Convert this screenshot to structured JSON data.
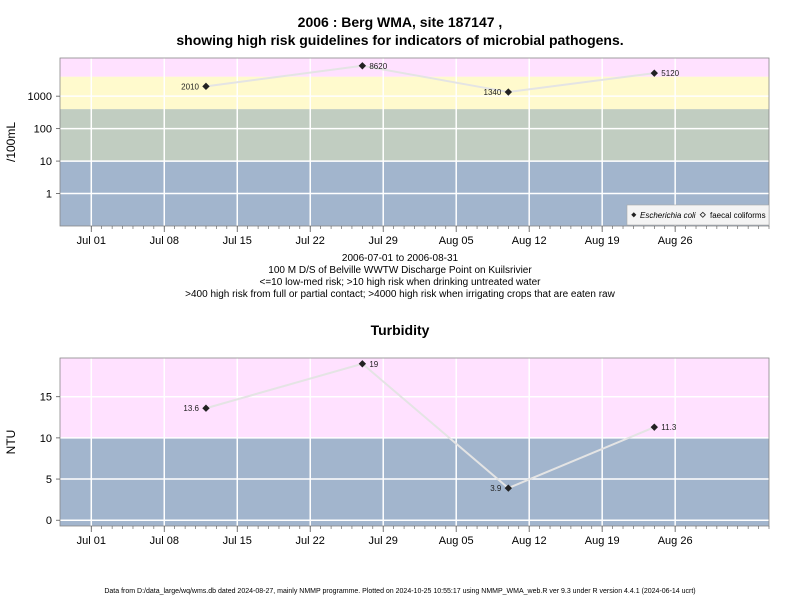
{
  "chart_data": [
    {
      "type": "line",
      "title_line1": "2006 : Berg WMA, site 187147 ,",
      "title_line2": "showing high risk guidelines for indicators of microbial pathogens.",
      "ylabel": "/100mL",
      "yscale": "log",
      "ytick_labels": [
        "1",
        "10",
        "100",
        "1000"
      ],
      "xtick_labels": [
        "Jul 01",
        "Jul 08",
        "Jul 15",
        "Jul 22",
        "Jul 29",
        "Aug 05",
        "Aug 12",
        "Aug 19",
        "Aug 26"
      ],
      "xtick_dates": [
        "2006-07-01",
        "2006-07-08",
        "2006-07-15",
        "2006-07-22",
        "2006-07-29",
        "2006-08-05",
        "2006-08-12",
        "2006-08-19",
        "2006-08-26"
      ],
      "bands": [
        {
          "from": 0.1,
          "to": 10,
          "color": "#a2b5cd"
        },
        {
          "from": 10,
          "to": 400,
          "color": "#c1cdc1"
        },
        {
          "from": 400,
          "to": 4000,
          "color": "#fffacd"
        },
        {
          "from": 4000,
          "to": 15000,
          "color": "#ffe1ff"
        }
      ],
      "series": [
        {
          "name": "Escherichia coli",
          "points": [
            {
              "x": "2006-07-12",
              "y": 2010,
              "label": "2010"
            },
            {
              "x": "2006-07-27",
              "y": 8620,
              "label": "8620"
            },
            {
              "x": "2006-08-10",
              "y": 1340,
              "label": "1340"
            },
            {
              "x": "2006-08-24",
              "y": 5120,
              "label": "5120"
            }
          ]
        }
      ],
      "legend": {
        "position": "bottom-right",
        "entries": [
          "Escherichia coli",
          "faecal coliforms"
        ]
      },
      "caption": [
        "2006-07-01 to 2006-08-31",
        "100 M D/S of Belville WWTW Discharge Point on Kuilsrivier",
        "<=10 low-med risk; >10 high risk when drinking untreated water",
        ">400 high risk from full or partial contact; >4000 high risk when irrigating crops that are eaten raw"
      ]
    },
    {
      "type": "line",
      "title": "Turbidity",
      "ylabel": "NTU",
      "ylim": [
        -0.7,
        19.7
      ],
      "ytick_labels": [
        "0",
        "5",
        "10",
        "15"
      ],
      "ytick_values": [
        0,
        5,
        10,
        15
      ],
      "xtick_labels": [
        "Jul 01",
        "Jul 08",
        "Jul 15",
        "Jul 22",
        "Jul 29",
        "Aug 05",
        "Aug 12",
        "Aug 19",
        "Aug 26"
      ],
      "xtick_dates": [
        "2006-07-01",
        "2006-07-08",
        "2006-07-15",
        "2006-07-22",
        "2006-07-29",
        "2006-08-05",
        "2006-08-12",
        "2006-08-19",
        "2006-08-26"
      ],
      "bands": [
        {
          "from": -0.7,
          "to": 10,
          "color": "#a2b5cd"
        },
        {
          "from": 10,
          "to": 19.7,
          "color": "#ffe1ff"
        }
      ],
      "series": [
        {
          "name": "Turbidity",
          "points": [
            {
              "x": "2006-07-12",
              "y": 13.6,
              "label": "13.6"
            },
            {
              "x": "2006-07-27",
              "y": 19,
              "label": "19"
            },
            {
              "x": "2006-08-10",
              "y": 3.9,
              "label": "3.9"
            },
            {
              "x": "2006-08-24",
              "y": 11.3,
              "label": "11.3"
            }
          ]
        }
      ]
    }
  ],
  "footer": "Data from D:/data_large/wq/wms.db dated 2024-08-27, mainly NMMP programme. Plotted on 2024-10-25 10:55:17 using NMMP_WMA_web.R ver 9.3 under R version 4.4.1 (2024-06-14 ucrt)"
}
